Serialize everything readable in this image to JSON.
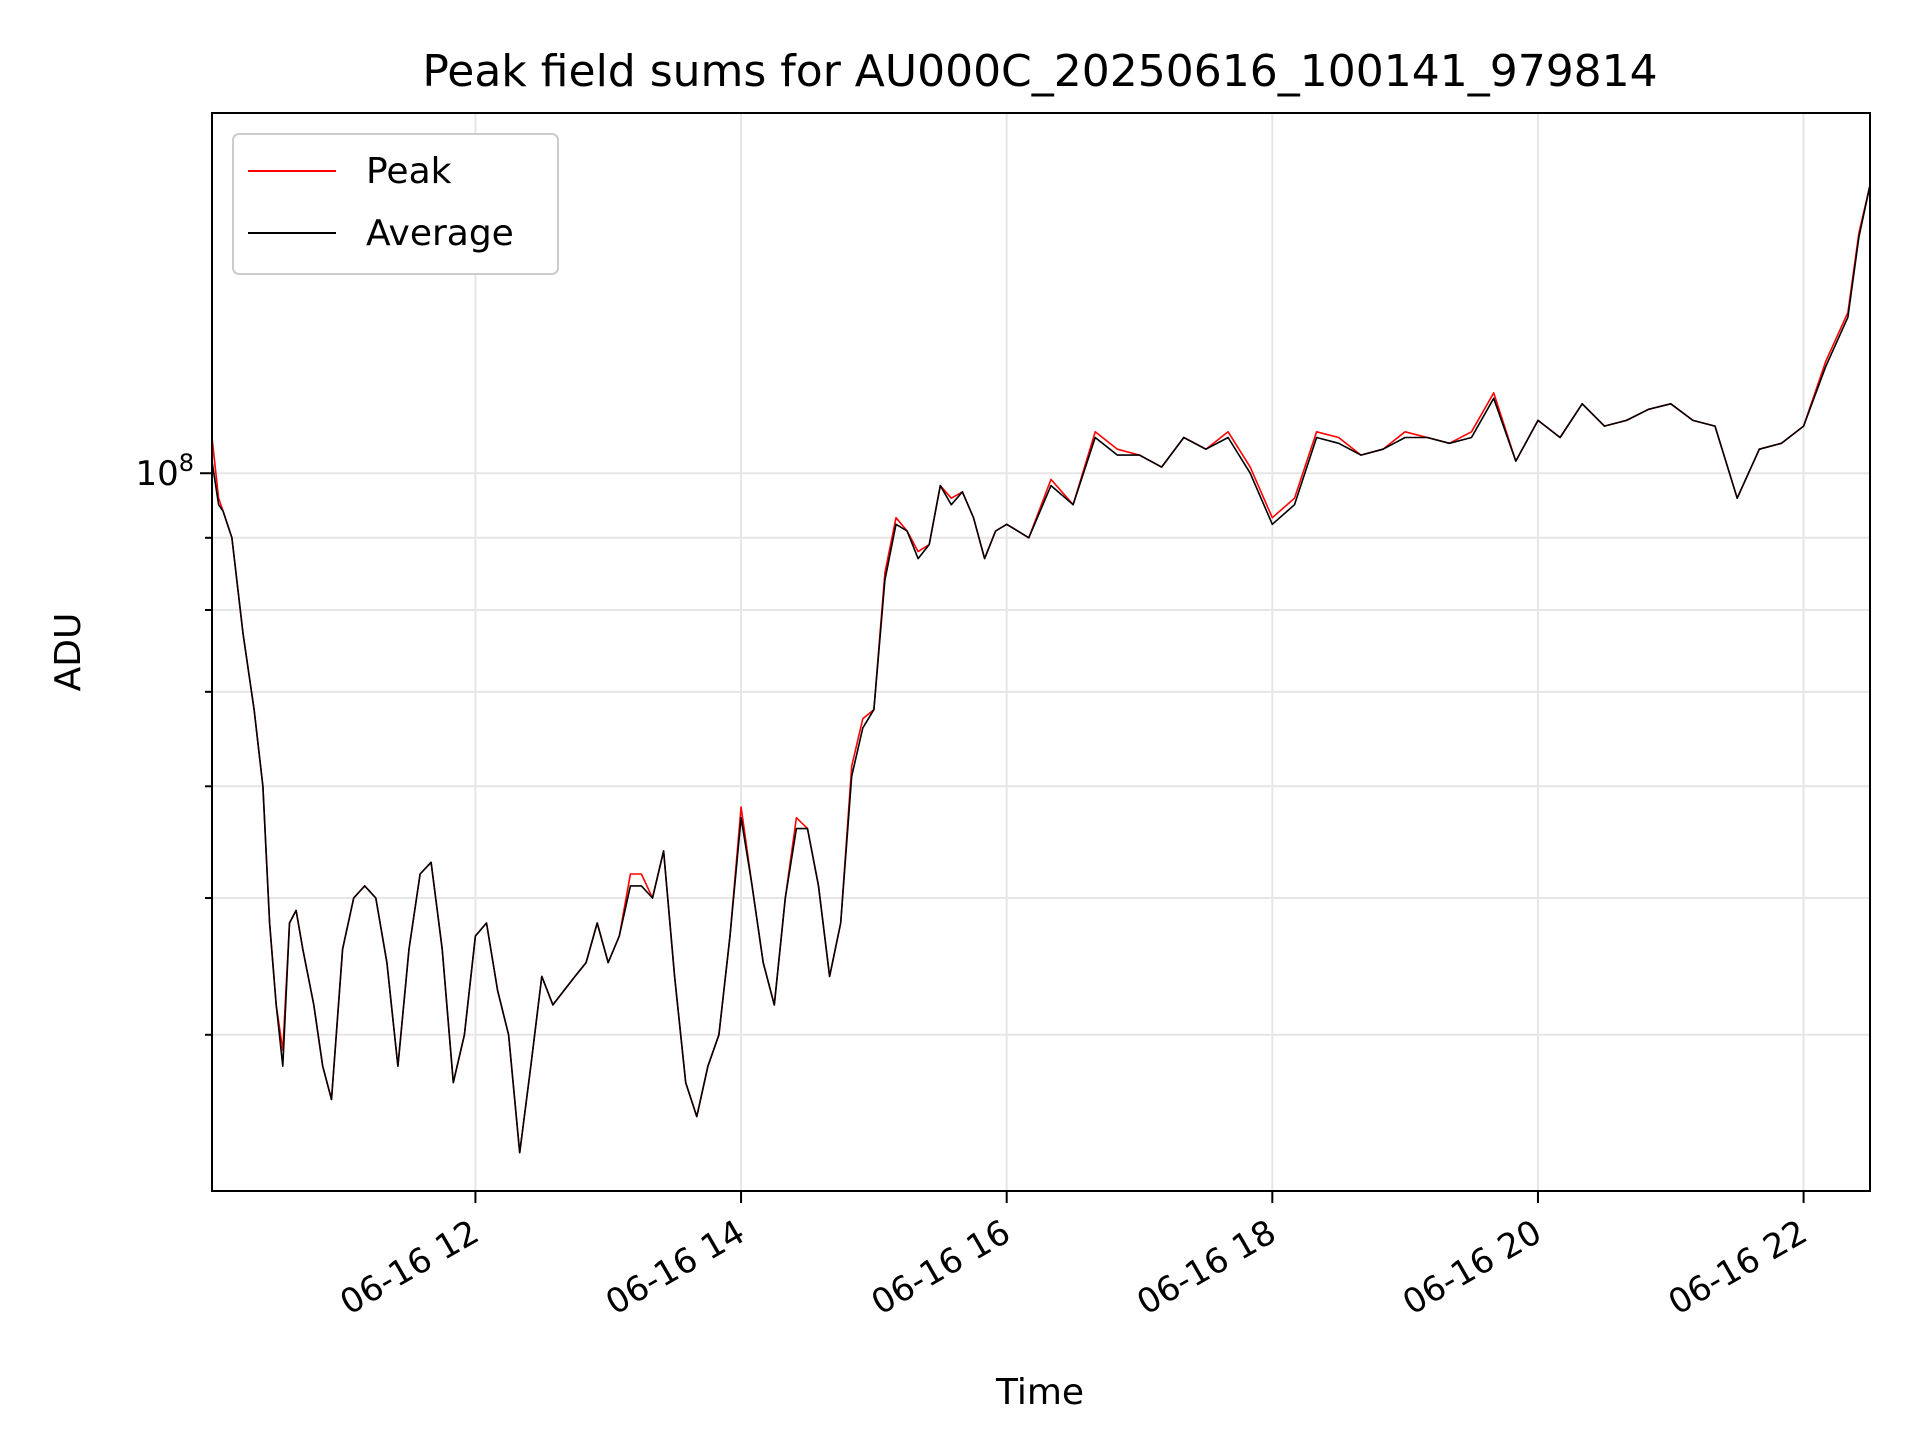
{
  "chart_data": {
    "type": "line",
    "title": "Peak field sums for AU000C_20250616_100141_979814",
    "xlabel": "Time",
    "ylabel": "ADU",
    "y_scale": "log",
    "ylim": [
      31000000,
      180000000
    ],
    "y_tick_labels": [
      "10^8"
    ],
    "y_major_ticks": [
      100000000
    ],
    "y_minor_ticks": [
      40000000,
      50000000,
      60000000,
      70000000,
      80000000,
      90000000
    ],
    "x_tick_labels": [
      "06-16 12",
      "06-16 14",
      "06-16 16",
      "06-16 18",
      "06-16 20",
      "06-16 22"
    ],
    "xlim": [
      "2025-06-16T10:01",
      "2025-06-16T22:30"
    ],
    "grid": true,
    "legend_position": "top-left",
    "series": [
      {
        "name": "Peak",
        "color": "#ff0000",
        "x": [
          "2025-06-16T10:01",
          "2025-06-16T10:04",
          "2025-06-16T10:06",
          "2025-06-16T10:10",
          "2025-06-16T10:15",
          "2025-06-16T10:20",
          "2025-06-16T10:24",
          "2025-06-16T10:27",
          "2025-06-16T10:30",
          "2025-06-16T10:33",
          "2025-06-16T10:36",
          "2025-06-16T10:39",
          "2025-06-16T10:42",
          "2025-06-16T10:47",
          "2025-06-16T10:51",
          "2025-06-16T10:55",
          "2025-06-16T11:00",
          "2025-06-16T11:05",
          "2025-06-16T11:10",
          "2025-06-16T11:15",
          "2025-06-16T11:20",
          "2025-06-16T11:25",
          "2025-06-16T11:30",
          "2025-06-16T11:35",
          "2025-06-16T11:40",
          "2025-06-16T11:45",
          "2025-06-16T11:50",
          "2025-06-16T11:55",
          "2025-06-16T12:00",
          "2025-06-16T12:05",
          "2025-06-16T12:10",
          "2025-06-16T12:15",
          "2025-06-16T12:20",
          "2025-06-16T12:25",
          "2025-06-16T12:30",
          "2025-06-16T12:35",
          "2025-06-16T12:40",
          "2025-06-16T12:45",
          "2025-06-16T12:50",
          "2025-06-16T12:55",
          "2025-06-16T13:00",
          "2025-06-16T13:05",
          "2025-06-16T13:10",
          "2025-06-16T13:15",
          "2025-06-16T13:20",
          "2025-06-16T13:25",
          "2025-06-16T13:30",
          "2025-06-16T13:35",
          "2025-06-16T13:40",
          "2025-06-16T13:45",
          "2025-06-16T13:50",
          "2025-06-16T13:55",
          "2025-06-16T14:00",
          "2025-06-16T14:05",
          "2025-06-16T14:10",
          "2025-06-16T14:15",
          "2025-06-16T14:20",
          "2025-06-16T14:25",
          "2025-06-16T14:30",
          "2025-06-16T14:35",
          "2025-06-16T14:40",
          "2025-06-16T14:45",
          "2025-06-16T14:50",
          "2025-06-16T14:55",
          "2025-06-16T15:00",
          "2025-06-16T15:05",
          "2025-06-16T15:10",
          "2025-06-16T15:15",
          "2025-06-16T15:20",
          "2025-06-16T15:25",
          "2025-06-16T15:30",
          "2025-06-16T15:35",
          "2025-06-16T15:40",
          "2025-06-16T15:45",
          "2025-06-16T15:50",
          "2025-06-16T15:55",
          "2025-06-16T16:00",
          "2025-06-16T16:10",
          "2025-06-16T16:20",
          "2025-06-16T16:30",
          "2025-06-16T16:40",
          "2025-06-16T16:50",
          "2025-06-16T17:00",
          "2025-06-16T17:10",
          "2025-06-16T17:20",
          "2025-06-16T17:30",
          "2025-06-16T17:40",
          "2025-06-16T17:50",
          "2025-06-16T18:00",
          "2025-06-16T18:10",
          "2025-06-16T18:20",
          "2025-06-16T18:30",
          "2025-06-16T18:40",
          "2025-06-16T18:50",
          "2025-06-16T19:00",
          "2025-06-16T19:10",
          "2025-06-16T19:20",
          "2025-06-16T19:30",
          "2025-06-16T19:40",
          "2025-06-16T19:50",
          "2025-06-16T20:00",
          "2025-06-16T20:10",
          "2025-06-16T20:20",
          "2025-06-16T20:30",
          "2025-06-16T20:40",
          "2025-06-16T20:50",
          "2025-06-16T21:00",
          "2025-06-16T21:10",
          "2025-06-16T21:20",
          "2025-06-16T21:30",
          "2025-06-16T21:40",
          "2025-06-16T21:50",
          "2025-06-16T22:00",
          "2025-06-16T22:10",
          "2025-06-16T22:20",
          "2025-06-16T22:25",
          "2025-06-16T22:30"
        ],
        "y": [
          106000000,
          96000000,
          94000000,
          90000000,
          77000000,
          68000000,
          60000000,
          48000000,
          42000000,
          39000000,
          48000000,
          49000000,
          46000000,
          42000000,
          38000000,
          36000000,
          46000000,
          50000000,
          51000000,
          50000000,
          45000000,
          38000000,
          46000000,
          52000000,
          53000000,
          46000000,
          37000000,
          40000000,
          47000000,
          48000000,
          43000000,
          40000000,
          33000000,
          38000000,
          44000000,
          42000000,
          43000000,
          44000000,
          45000000,
          48000000,
          45000000,
          47000000,
          52000000,
          52000000,
          50000000,
          54000000,
          44000000,
          37000000,
          35000000,
          38000000,
          40000000,
          47000000,
          58000000,
          51000000,
          45000000,
          42000000,
          50000000,
          57000000,
          56000000,
          51000000,
          44000000,
          48000000,
          62000000,
          67000000,
          68000000,
          85000000,
          93000000,
          91000000,
          88000000,
          89000000,
          98000000,
          96000000,
          97000000,
          93000000,
          87000000,
          91000000,
          92000000,
          90000000,
          99000000,
          95000000,
          107000000,
          104000000,
          103000000,
          101000000,
          106000000,
          104000000,
          107000000,
          101000000,
          93000000,
          96000000,
          107000000,
          106000000,
          103000000,
          104000000,
          107000000,
          106000000,
          105000000,
          107000000,
          114000000,
          102000000,
          109000000,
          106000000,
          112000000,
          108000000,
          109000000,
          111000000,
          112000000,
          109000000,
          108000000,
          96000000,
          104000000,
          105000000,
          108000000,
          120000000,
          130000000,
          148000000,
          160000000
        ]
      },
      {
        "name": "Average",
        "color": "#000000",
        "x": [
          "2025-06-16T10:01",
          "2025-06-16T10:04",
          "2025-06-16T10:06",
          "2025-06-16T10:10",
          "2025-06-16T10:15",
          "2025-06-16T10:20",
          "2025-06-16T10:24",
          "2025-06-16T10:27",
          "2025-06-16T10:30",
          "2025-06-16T10:33",
          "2025-06-16T10:36",
          "2025-06-16T10:39",
          "2025-06-16T10:42",
          "2025-06-16T10:47",
          "2025-06-16T10:51",
          "2025-06-16T10:55",
          "2025-06-16T11:00",
          "2025-06-16T11:05",
          "2025-06-16T11:10",
          "2025-06-16T11:15",
          "2025-06-16T11:20",
          "2025-06-16T11:25",
          "2025-06-16T11:30",
          "2025-06-16T11:35",
          "2025-06-16T11:40",
          "2025-06-16T11:45",
          "2025-06-16T11:50",
          "2025-06-16T11:55",
          "2025-06-16T12:00",
          "2025-06-16T12:05",
          "2025-06-16T12:10",
          "2025-06-16T12:15",
          "2025-06-16T12:20",
          "2025-06-16T12:25",
          "2025-06-16T12:30",
          "2025-06-16T12:35",
          "2025-06-16T12:40",
          "2025-06-16T12:45",
          "2025-06-16T12:50",
          "2025-06-16T12:55",
          "2025-06-16T13:00",
          "2025-06-16T13:05",
          "2025-06-16T13:10",
          "2025-06-16T13:15",
          "2025-06-16T13:20",
          "2025-06-16T13:25",
          "2025-06-16T13:30",
          "2025-06-16T13:35",
          "2025-06-16T13:40",
          "2025-06-16T13:45",
          "2025-06-16T13:50",
          "2025-06-16T13:55",
          "2025-06-16T14:00",
          "2025-06-16T14:05",
          "2025-06-16T14:10",
          "2025-06-16T14:15",
          "2025-06-16T14:20",
          "2025-06-16T14:25",
          "2025-06-16T14:30",
          "2025-06-16T14:35",
          "2025-06-16T14:40",
          "2025-06-16T14:45",
          "2025-06-16T14:50",
          "2025-06-16T14:55",
          "2025-06-16T15:00",
          "2025-06-16T15:05",
          "2025-06-16T15:10",
          "2025-06-16T15:15",
          "2025-06-16T15:20",
          "2025-06-16T15:25",
          "2025-06-16T15:30",
          "2025-06-16T15:35",
          "2025-06-16T15:40",
          "2025-06-16T15:45",
          "2025-06-16T15:50",
          "2025-06-16T15:55",
          "2025-06-16T16:00",
          "2025-06-16T16:10",
          "2025-06-16T16:20",
          "2025-06-16T16:30",
          "2025-06-16T16:40",
          "2025-06-16T16:50",
          "2025-06-16T17:00",
          "2025-06-16T17:10",
          "2025-06-16T17:20",
          "2025-06-16T17:30",
          "2025-06-16T17:40",
          "2025-06-16T17:50",
          "2025-06-16T18:00",
          "2025-06-16T18:10",
          "2025-06-16T18:20",
          "2025-06-16T18:30",
          "2025-06-16T18:40",
          "2025-06-16T18:50",
          "2025-06-16T19:00",
          "2025-06-16T19:10",
          "2025-06-16T19:20",
          "2025-06-16T19:30",
          "2025-06-16T19:40",
          "2025-06-16T19:50",
          "2025-06-16T20:00",
          "2025-06-16T20:10",
          "2025-06-16T20:20",
          "2025-06-16T20:30",
          "2025-06-16T20:40",
          "2025-06-16T20:50",
          "2025-06-16T21:00",
          "2025-06-16T21:10",
          "2025-06-16T21:20",
          "2025-06-16T21:30",
          "2025-06-16T21:40",
          "2025-06-16T21:50",
          "2025-06-16T22:00",
          "2025-06-16T22:10",
          "2025-06-16T22:20",
          "2025-06-16T22:25",
          "2025-06-16T22:30"
        ],
        "y": [
          102000000,
          95000000,
          94000000,
          90000000,
          77000000,
          68000000,
          60000000,
          48000000,
          42000000,
          38000000,
          48000000,
          49000000,
          46000000,
          42000000,
          38000000,
          36000000,
          46000000,
          50000000,
          51000000,
          50000000,
          45000000,
          38000000,
          46000000,
          52000000,
          53000000,
          46000000,
          37000000,
          40000000,
          47000000,
          48000000,
          43000000,
          40000000,
          33000000,
          38000000,
          44000000,
          42000000,
          43000000,
          44000000,
          45000000,
          48000000,
          45000000,
          47000000,
          51000000,
          51000000,
          50000000,
          54000000,
          44000000,
          37000000,
          35000000,
          38000000,
          40000000,
          47000000,
          57000000,
          51000000,
          45000000,
          42000000,
          50000000,
          56000000,
          56000000,
          51000000,
          44000000,
          48000000,
          61000000,
          66000000,
          68000000,
          84000000,
          92000000,
          91000000,
          87000000,
          89000000,
          98000000,
          95000000,
          97000000,
          93000000,
          87000000,
          91000000,
          92000000,
          90000000,
          98000000,
          95000000,
          106000000,
          103000000,
          103000000,
          101000000,
          106000000,
          104000000,
          106000000,
          100000000,
          92000000,
          95000000,
          106000000,
          105000000,
          103000000,
          104000000,
          106000000,
          106000000,
          105000000,
          106000000,
          113000000,
          102000000,
          109000000,
          106000000,
          112000000,
          108000000,
          109000000,
          111000000,
          112000000,
          109000000,
          108000000,
          96000000,
          104000000,
          105000000,
          108000000,
          119000000,
          129000000,
          147000000,
          160000000
        ]
      }
    ]
  }
}
